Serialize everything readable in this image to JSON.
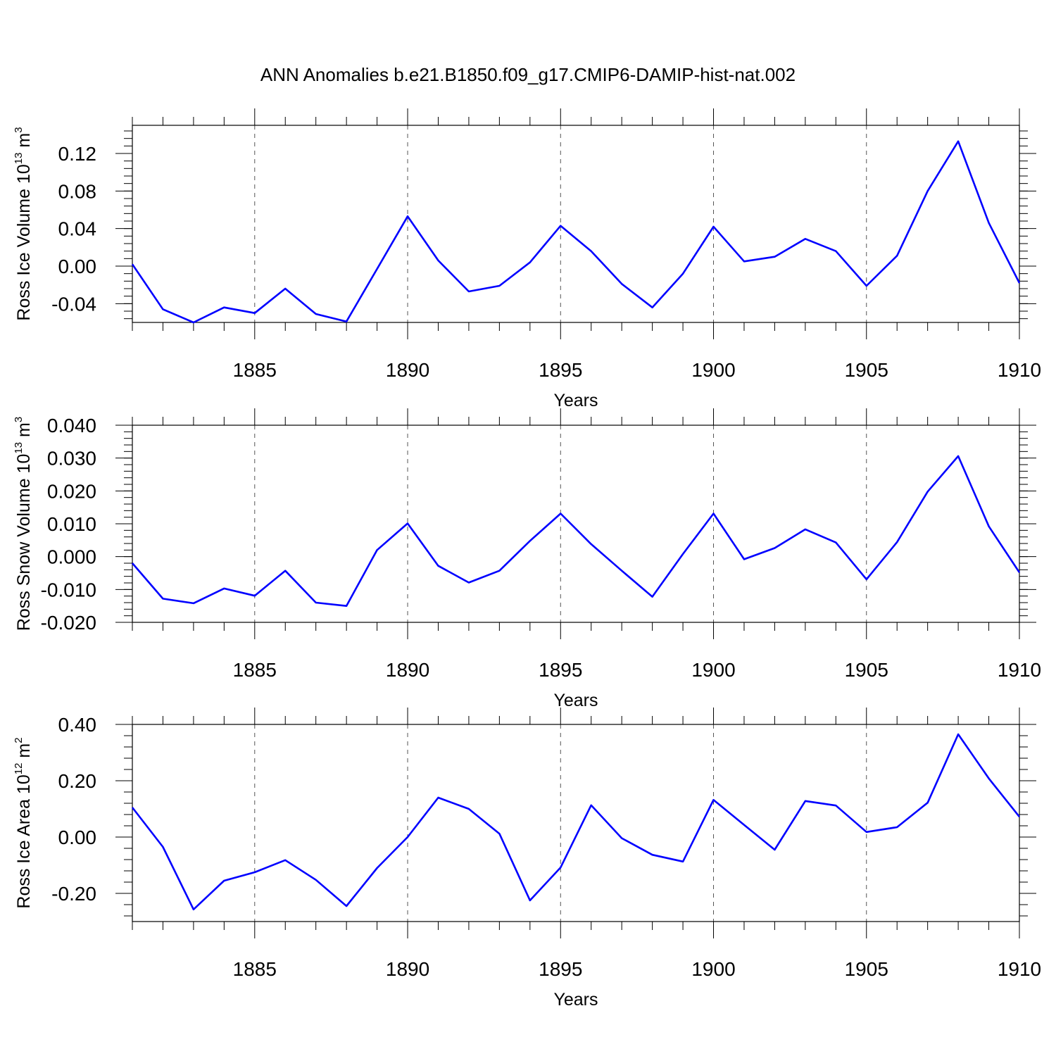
{
  "title": "ANN Anomalies b.e21.B1850.f09_g17.CMIP6-DAMIP-hist-nat.002",
  "chart_data": [
    {
      "type": "line",
      "ylabel": "Ross Ice Volume 10",
      "ylabel_exp": "13",
      "ylabel_unit": "m",
      "ylabel_unit_exp": "3",
      "xlabel": "Years",
      "xlim": [
        1881,
        1910
      ],
      "ylim": [
        -0.06,
        0.15
      ],
      "yticks": [
        -0.04,
        0.0,
        0.04,
        0.08,
        0.12
      ],
      "ytick_labels": [
        "-0.04",
        "0.00",
        "0.04",
        "0.08",
        "0.12"
      ],
      "yminor_step": 0.008,
      "xticks": [
        1885,
        1890,
        1895,
        1900,
        1905,
        1910
      ],
      "xtick_labels": [
        "1885",
        "1890",
        "1895",
        "1900",
        "1905",
        "1910"
      ],
      "x": [
        1881,
        1882,
        1883,
        1884,
        1885,
        1886,
        1887,
        1888,
        1889,
        1890,
        1891,
        1892,
        1893,
        1894,
        1895,
        1896,
        1897,
        1898,
        1899,
        1900,
        1901,
        1902,
        1903,
        1904,
        1905,
        1906,
        1907,
        1908,
        1909,
        1910
      ],
      "series": [
        {
          "values": [
            0.002,
            -0.046,
            -0.06,
            -0.044,
            -0.05,
            -0.024,
            -0.051,
            -0.059,
            -0.003,
            0.053,
            0.006,
            -0.027,
            -0.021,
            0.004,
            0.043,
            0.016,
            -0.019,
            -0.044,
            -0.008,
            0.042,
            0.005,
            0.01,
            0.029,
            0.016,
            -0.021,
            0.011,
            0.08,
            0.133,
            0.046,
            -0.018
          ],
          "color": "#0000ff"
        }
      ]
    },
    {
      "type": "line",
      "ylabel": "Ross Snow Volume 10",
      "ylabel_exp": "13",
      "ylabel_unit": "m",
      "ylabel_unit_exp": "3",
      "xlabel": "Years",
      "xlim": [
        1881,
        1910
      ],
      "ylim": [
        -0.02,
        0.04
      ],
      "yticks": [
        -0.02,
        -0.01,
        0.0,
        0.01,
        0.02,
        0.03,
        0.04
      ],
      "ytick_labels": [
        "-0.020",
        "-0.010",
        "0.000",
        "0.010",
        "0.020",
        "0.030",
        "0.040"
      ],
      "yminor_step": 0.002,
      "xticks": [
        1885,
        1890,
        1895,
        1900,
        1905,
        1910
      ],
      "xtick_labels": [
        "1885",
        "1890",
        "1895",
        "1900",
        "1905",
        "1910"
      ],
      "x": [
        1881,
        1882,
        1883,
        1884,
        1885,
        1886,
        1887,
        1888,
        1889,
        1890,
        1891,
        1892,
        1893,
        1894,
        1895,
        1896,
        1897,
        1898,
        1899,
        1900,
        1901,
        1902,
        1903,
        1904,
        1905,
        1906,
        1907,
        1908,
        1909,
        1910
      ],
      "series": [
        {
          "values": [
            -0.002,
            -0.0128,
            -0.0142,
            -0.0097,
            -0.0119,
            -0.0043,
            -0.014,
            -0.015,
            0.002,
            0.0101,
            -0.0028,
            -0.0079,
            -0.0043,
            0.0048,
            0.0131,
            0.0038,
            -0.0043,
            -0.0122,
            0.0008,
            0.0131,
            -0.0008,
            0.0026,
            0.0083,
            0.0043,
            -0.0069,
            0.0044,
            0.0198,
            0.0306,
            0.0092,
            -0.0048
          ],
          "color": "#0000ff"
        }
      ]
    },
    {
      "type": "line",
      "ylabel": "Ross Ice Area 10",
      "ylabel_exp": "12",
      "ylabel_unit": "m",
      "ylabel_unit_exp": "2",
      "xlabel": "Years",
      "xlim": [
        1881,
        1910
      ],
      "ylim": [
        -0.3,
        0.4
      ],
      "yticks": [
        -0.2,
        0.0,
        0.2,
        0.4
      ],
      "ytick_labels": [
        "-0.20",
        "0.00",
        "0.20",
        "0.40"
      ],
      "yminor_step": 0.04,
      "xticks": [
        1885,
        1890,
        1895,
        1900,
        1905,
        1910
      ],
      "xtick_labels": [
        "1885",
        "1890",
        "1895",
        "1900",
        "1905",
        "1910"
      ],
      "x": [
        1881,
        1882,
        1883,
        1884,
        1885,
        1886,
        1887,
        1888,
        1889,
        1890,
        1891,
        1892,
        1893,
        1894,
        1895,
        1896,
        1897,
        1898,
        1899,
        1900,
        1901,
        1902,
        1903,
        1904,
        1905,
        1906,
        1907,
        1908,
        1909,
        1910
      ],
      "series": [
        {
          "values": [
            0.105,
            -0.035,
            -0.257,
            -0.155,
            -0.125,
            -0.082,
            -0.152,
            -0.245,
            -0.11,
            0.0,
            0.14,
            0.1,
            0.012,
            -0.225,
            -0.108,
            0.113,
            -0.004,
            -0.063,
            -0.087,
            0.132,
            0.043,
            -0.045,
            0.128,
            0.112,
            0.018,
            0.035,
            0.122,
            0.365,
            0.208,
            0.072
          ],
          "color": "#0000ff"
        }
      ]
    }
  ]
}
